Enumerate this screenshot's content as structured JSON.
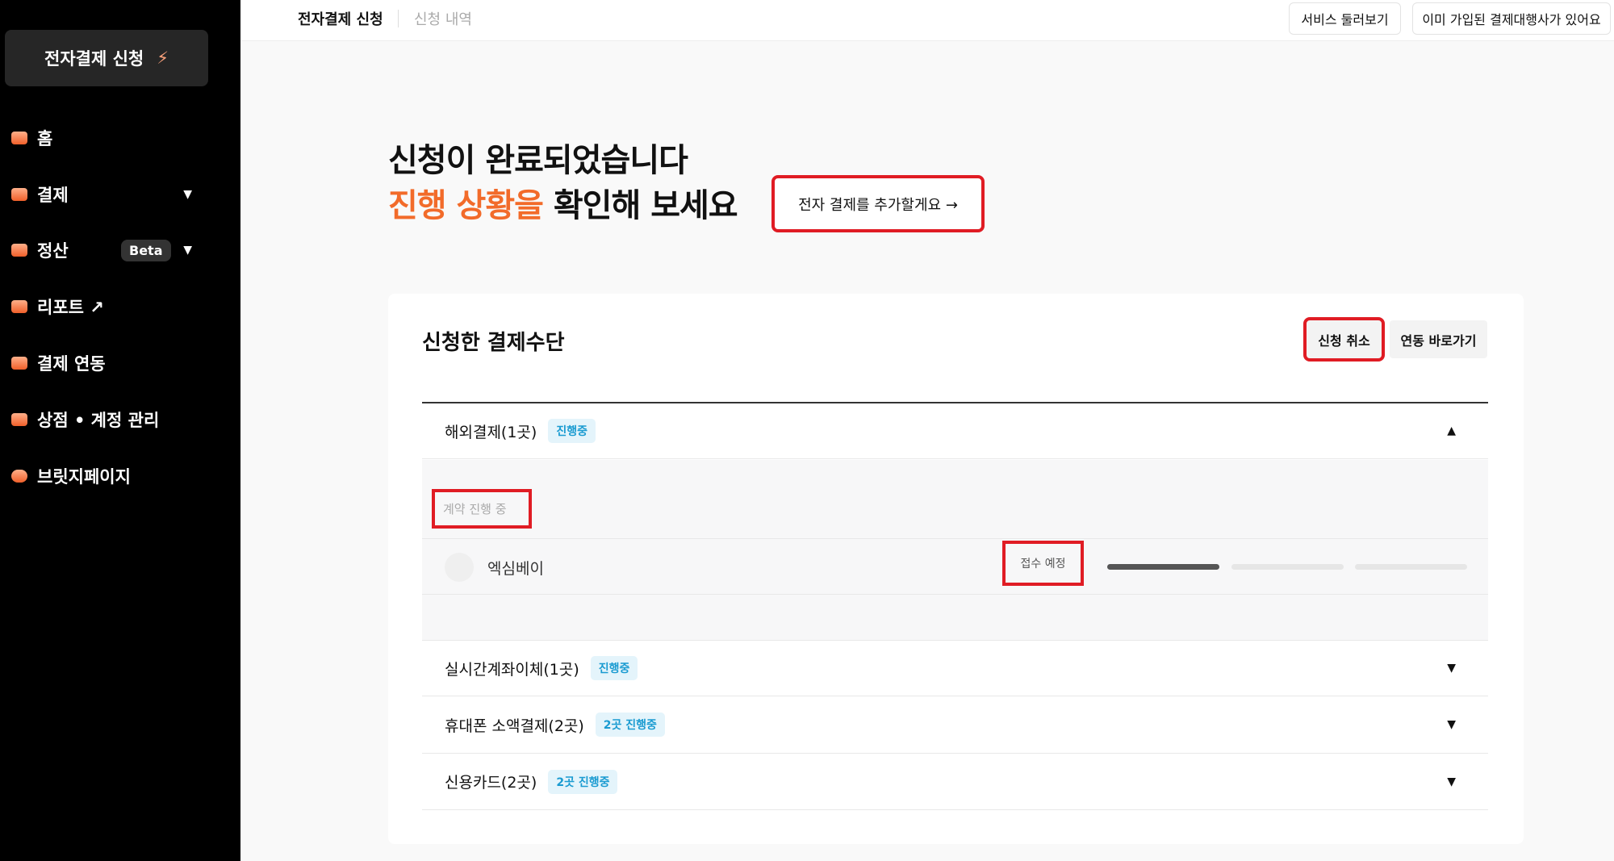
{
  "sidebar": {
    "apply_label": "전자결제 신청",
    "apply_icon": "lightning-icon",
    "items": [
      {
        "label": "홈",
        "icon": "home-icon"
      },
      {
        "label": "결제",
        "icon": "layers-icon",
        "has_dropdown": true
      },
      {
        "label": "정산",
        "icon": "documents-icon",
        "badge": "Beta",
        "has_dropdown": true
      },
      {
        "label": "리포트 ↗",
        "icon": "layers-icon"
      },
      {
        "label": "결제 연동",
        "icon": "link-icon"
      },
      {
        "label": "상점 • 계정 관리",
        "icon": "store-icon"
      },
      {
        "label": "브릿지페이지",
        "icon": "toggle-icon"
      }
    ]
  },
  "header": {
    "tabs": [
      "전자결제 신청",
      "신청 내역"
    ],
    "active_tab": 0,
    "buttons": [
      "서비스 둘러보기",
      "이미 가입된 결제대행사가 있어요"
    ]
  },
  "hero": {
    "line1": "신청이 완료되었습니다",
    "line2_highlight": "진행 상황을",
    "line2_rest": " 확인해 보세요",
    "add_button": "전자 결제를 추가할게요 →",
    "accent": "#f26b2a"
  },
  "card": {
    "title": "신청한 결제수단",
    "cancel_button": "신청 취소",
    "link_button": "연동 바로가기",
    "sections": [
      {
        "name": "해외결제(1곳)",
        "badge": "진행중",
        "expanded": true,
        "group_label": "계약 진행 중",
        "items": [
          {
            "name": "엑심베이",
            "status": "접수 예정",
            "progress_steps": 3,
            "progress_done": 1
          }
        ]
      },
      {
        "name": "실시간계좌이체(1곳)",
        "badge": "진행중",
        "expanded": false
      },
      {
        "name": "휴대폰 소액결제(2곳)",
        "badge": "2곳 진행중",
        "expanded": false
      },
      {
        "name": "신용카드(2곳)",
        "badge": "2곳 진행중",
        "expanded": false
      }
    ]
  }
}
